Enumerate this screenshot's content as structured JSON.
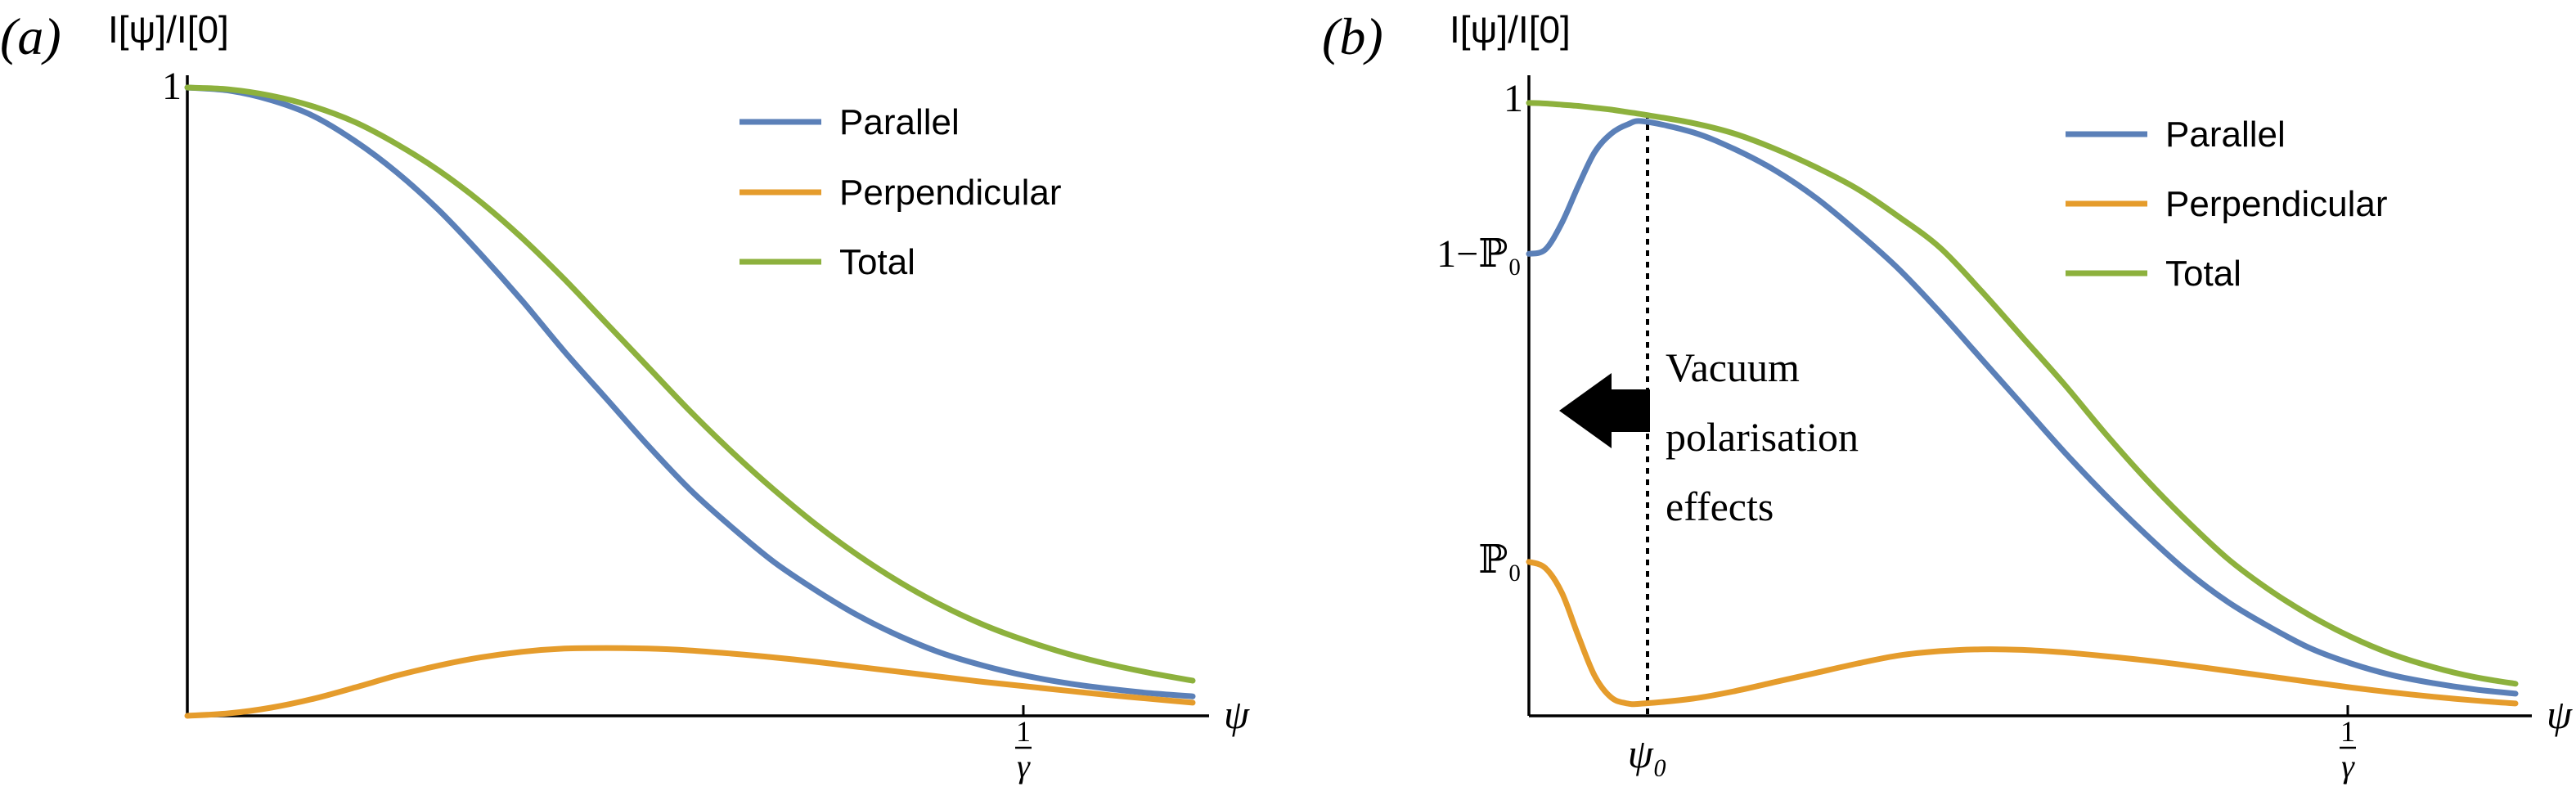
{
  "colors": {
    "parallel": "#5b80b8",
    "perpendicular": "#e59c2c",
    "total": "#8db13d"
  },
  "chart_data": [
    {
      "type": "line",
      "panel_label": "(a)",
      "ylabel": "I[ψ]/I[0]",
      "xlabel": "ψ",
      "ylim": [
        0,
        1
      ],
      "xlim": [
        0,
        1.2
      ],
      "y_ticks": [
        {
          "value": 1,
          "label": "1"
        }
      ],
      "x_ticks": [
        {
          "value": 1,
          "label_num": "1",
          "label_den": "γ"
        }
      ],
      "legend_position": "top-right",
      "series": [
        {
          "name": "Parallel",
          "color_key": "parallel",
          "x": [
            0,
            0.05,
            0.1,
            0.15,
            0.2,
            0.25,
            0.3,
            0.35,
            0.4,
            0.45,
            0.5,
            0.55,
            0.6,
            0.65,
            0.7,
            0.75,
            0.8,
            0.85,
            0.9,
            0.95,
            1.0,
            1.05,
            1.1,
            1.15,
            1.2
          ],
          "values": [
            1.0,
            0.995,
            0.98,
            0.955,
            0.915,
            0.865,
            0.805,
            0.735,
            0.66,
            0.58,
            0.505,
            0.43,
            0.36,
            0.3,
            0.245,
            0.2,
            0.16,
            0.127,
            0.1,
            0.08,
            0.064,
            0.052,
            0.043,
            0.036,
            0.031
          ]
        },
        {
          "name": "Perpendicular",
          "color_key": "perpendicular",
          "x": [
            0,
            0.05,
            0.1,
            0.15,
            0.2,
            0.25,
            0.3,
            0.35,
            0.4,
            0.45,
            0.5,
            0.55,
            0.6,
            0.65,
            0.7,
            0.75,
            0.8,
            0.85,
            0.9,
            0.95,
            1.0,
            1.05,
            1.1,
            1.15,
            1.2
          ],
          "values": [
            0.0,
            0.004,
            0.013,
            0.027,
            0.045,
            0.064,
            0.08,
            0.093,
            0.102,
            0.107,
            0.108,
            0.107,
            0.104,
            0.099,
            0.093,
            0.086,
            0.078,
            0.07,
            0.062,
            0.054,
            0.047,
            0.04,
            0.033,
            0.027,
            0.021
          ]
        },
        {
          "name": "Total",
          "color_key": "total",
          "x": [
            0,
            0.05,
            0.1,
            0.15,
            0.2,
            0.25,
            0.3,
            0.35,
            0.4,
            0.45,
            0.5,
            0.55,
            0.6,
            0.65,
            0.7,
            0.75,
            0.8,
            0.85,
            0.9,
            0.95,
            1.0,
            1.05,
            1.1,
            1.15,
            1.2
          ],
          "values": [
            1.0,
            0.997,
            0.987,
            0.97,
            0.945,
            0.91,
            0.868,
            0.818,
            0.76,
            0.695,
            0.625,
            0.555,
            0.485,
            0.42,
            0.36,
            0.305,
            0.256,
            0.213,
            0.176,
            0.145,
            0.12,
            0.099,
            0.082,
            0.068,
            0.056
          ]
        }
      ]
    },
    {
      "type": "line",
      "panel_label": "(b)",
      "ylabel": "I[ψ]/I[0]",
      "xlabel": "ψ",
      "ylim": [
        0,
        1
      ],
      "xlim": [
        0,
        1.2
      ],
      "y_ticks": [
        {
          "value": 1,
          "label": "1"
        },
        {
          "value": 0.75,
          "label": "1−ℙ₀"
        },
        {
          "value": 0.25,
          "label": "ℙ₀"
        }
      ],
      "x_ticks": [
        {
          "value": 0.14,
          "label": "ψ₀"
        },
        {
          "value": 1,
          "label_num": "1",
          "label_den": "γ"
        }
      ],
      "marker_line_x": 0.14,
      "annotation": [
        "Vacuum",
        "polarisation",
        "effects"
      ],
      "legend_position": "top-right",
      "series": [
        {
          "name": "Parallel",
          "color_key": "parallel",
          "x": [
            0,
            0.02,
            0.04,
            0.06,
            0.08,
            0.1,
            0.12,
            0.14,
            0.2,
            0.25,
            0.3,
            0.35,
            0.4,
            0.45,
            0.5,
            0.55,
            0.6,
            0.65,
            0.7,
            0.75,
            0.8,
            0.85,
            0.9,
            0.95,
            1.0,
            1.05,
            1.1,
            1.15,
            1.2
          ],
          "values": [
            0.75,
            0.757,
            0.8,
            0.86,
            0.915,
            0.945,
            0.96,
            0.965,
            0.947,
            0.92,
            0.885,
            0.84,
            0.785,
            0.725,
            0.655,
            0.58,
            0.505,
            0.43,
            0.36,
            0.295,
            0.235,
            0.185,
            0.145,
            0.11,
            0.085,
            0.066,
            0.053,
            0.043,
            0.036
          ]
        },
        {
          "name": "Perpendicular",
          "color_key": "perpendicular",
          "x": [
            0,
            0.02,
            0.04,
            0.06,
            0.08,
            0.1,
            0.12,
            0.14,
            0.2,
            0.25,
            0.3,
            0.35,
            0.4,
            0.45,
            0.5,
            0.55,
            0.6,
            0.65,
            0.7,
            0.75,
            0.8,
            0.85,
            0.9,
            0.95,
            1.0,
            1.05,
            1.1,
            1.15,
            1.2
          ],
          "values": [
            0.25,
            0.24,
            0.2,
            0.13,
            0.065,
            0.03,
            0.02,
            0.02,
            0.028,
            0.04,
            0.055,
            0.07,
            0.085,
            0.098,
            0.105,
            0.108,
            0.107,
            0.103,
            0.097,
            0.09,
            0.082,
            0.073,
            0.064,
            0.055,
            0.046,
            0.038,
            0.031,
            0.025,
            0.02
          ]
        },
        {
          "name": "Total",
          "color_key": "total",
          "x": [
            0,
            0.02,
            0.04,
            0.06,
            0.08,
            0.1,
            0.12,
            0.14,
            0.2,
            0.25,
            0.3,
            0.35,
            0.4,
            0.45,
            0.5,
            0.55,
            0.6,
            0.65,
            0.7,
            0.75,
            0.8,
            0.85,
            0.9,
            0.95,
            1.0,
            1.05,
            1.1,
            1.15,
            1.2
          ],
          "values": [
            0.995,
            0.994,
            0.992,
            0.99,
            0.987,
            0.984,
            0.98,
            0.976,
            0.962,
            0.945,
            0.92,
            0.89,
            0.855,
            0.81,
            0.76,
            0.69,
            0.615,
            0.54,
            0.46,
            0.385,
            0.317,
            0.255,
            0.205,
            0.163,
            0.128,
            0.1,
            0.079,
            0.063,
            0.052
          ]
        }
      ]
    }
  ]
}
